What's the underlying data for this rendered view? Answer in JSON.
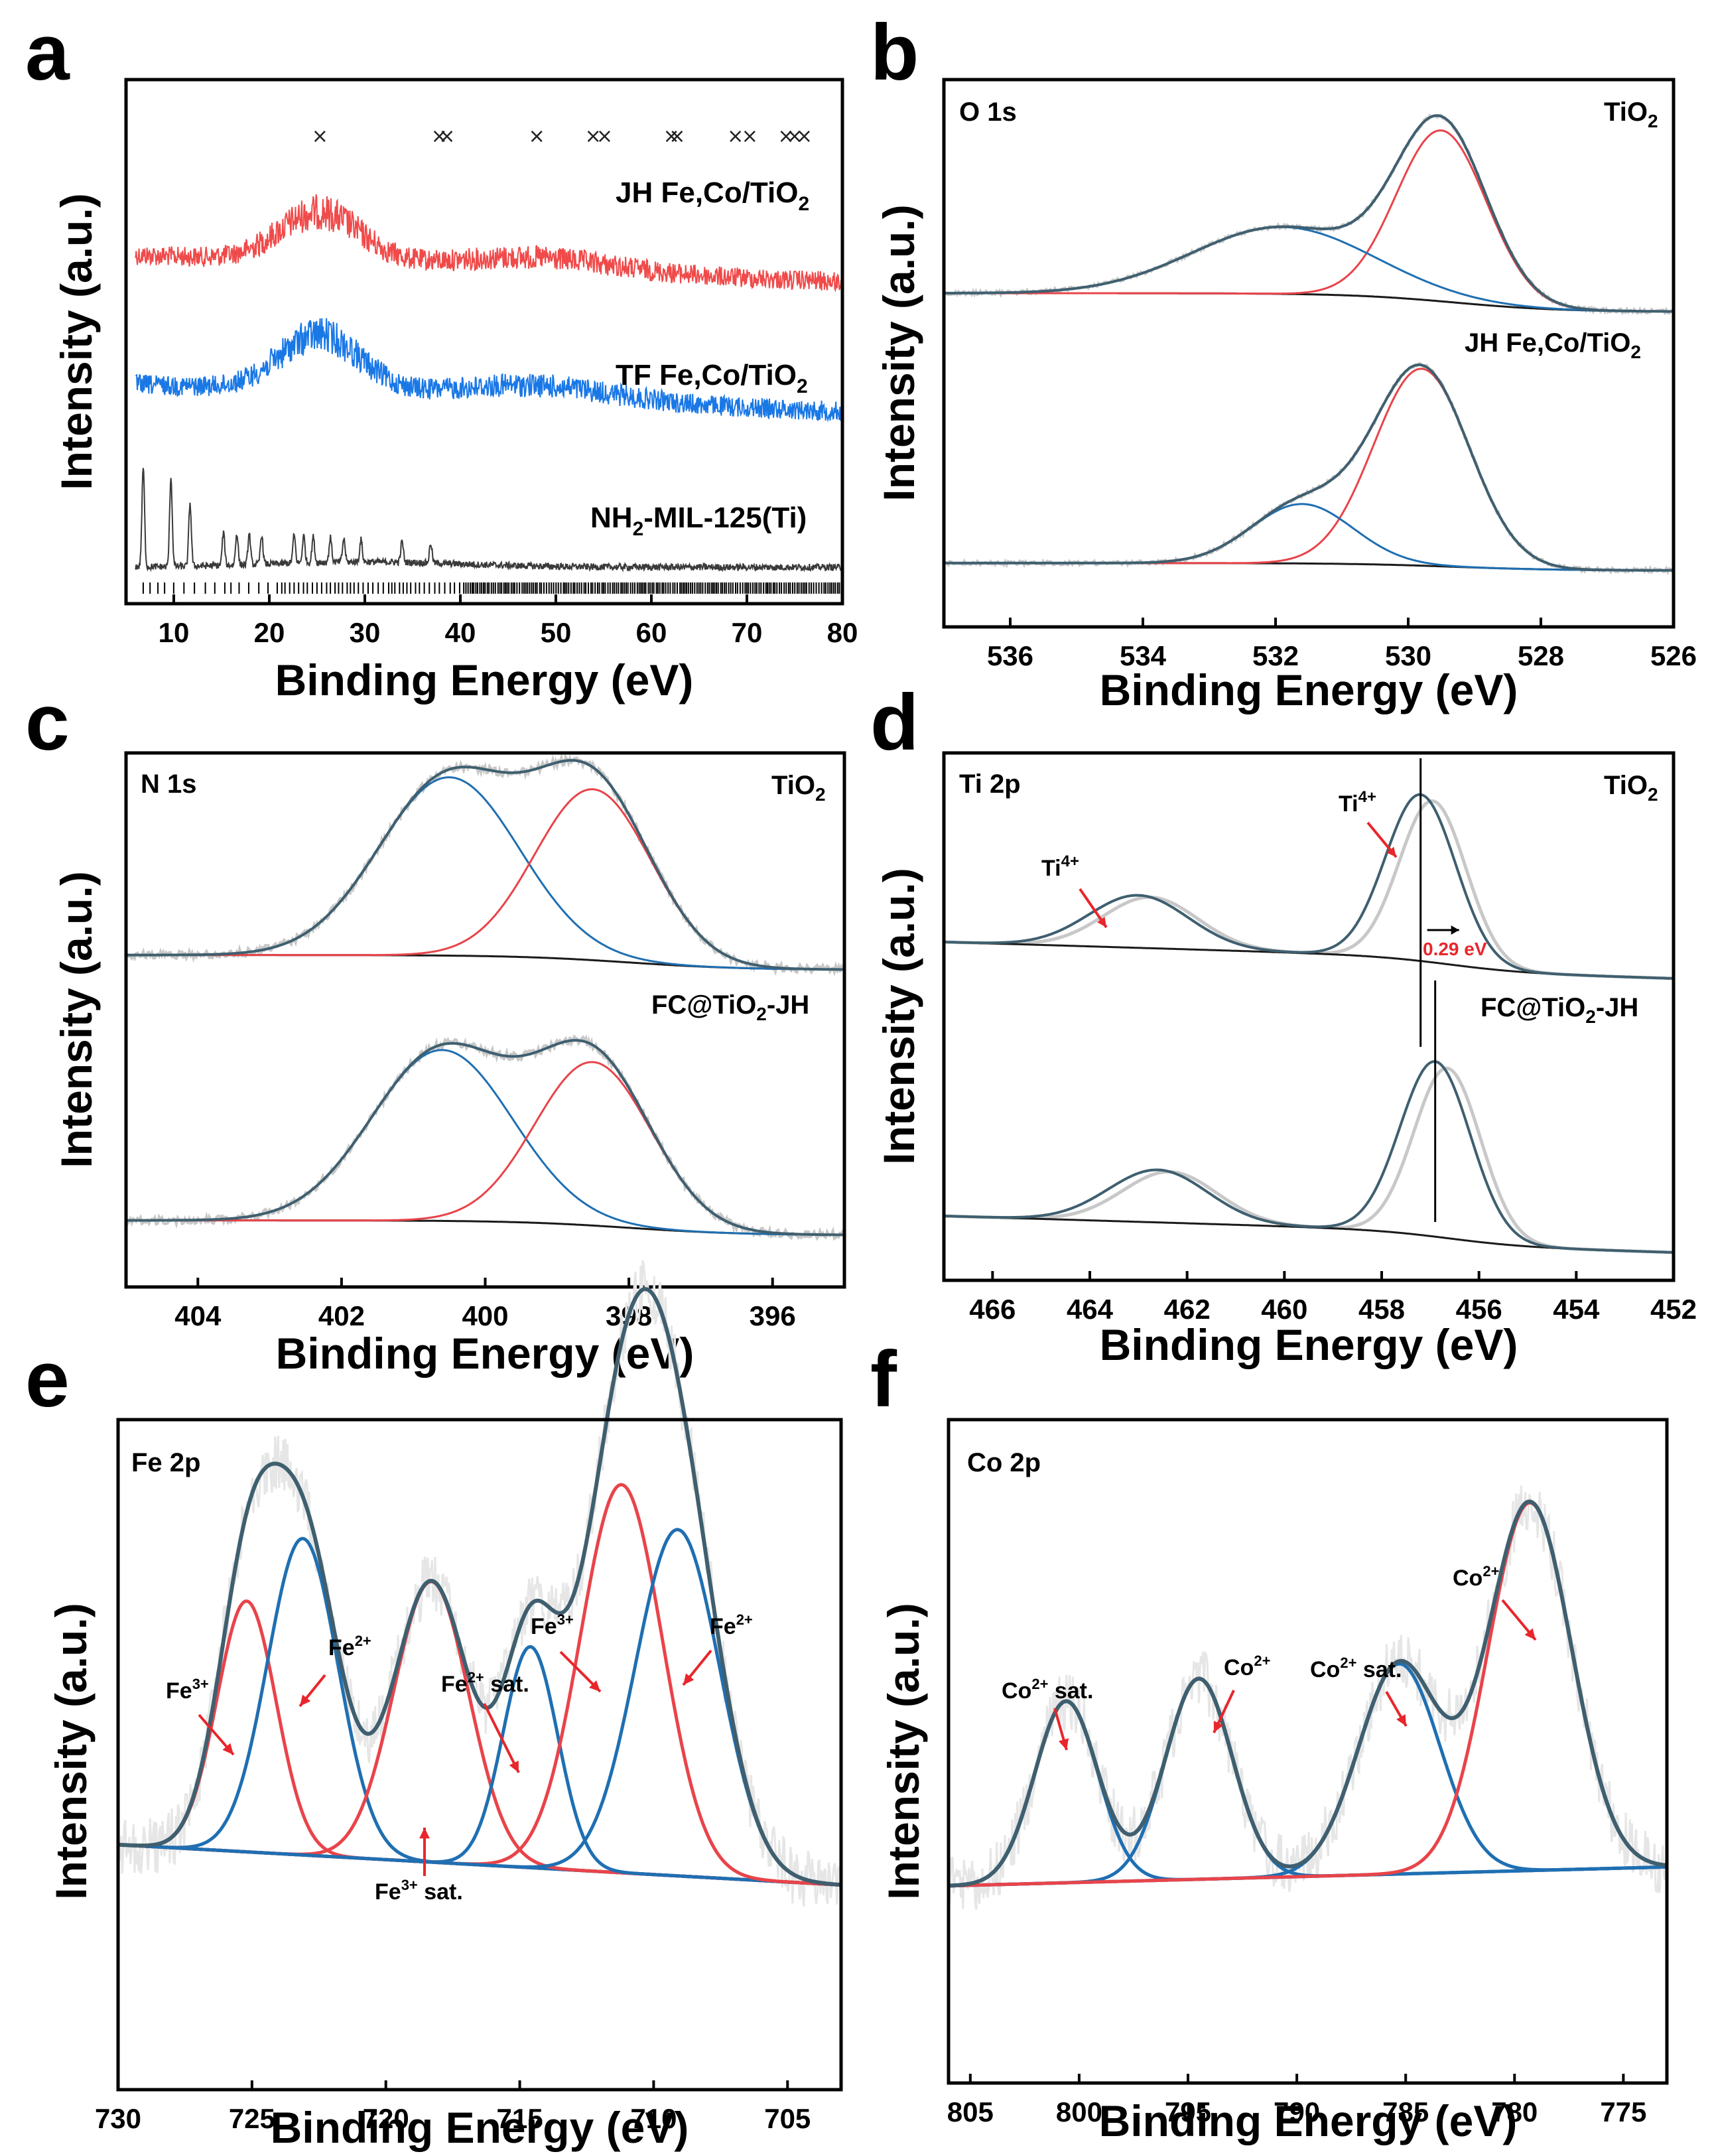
{
  "figure": {
    "colors": {
      "raw": "#c8c8c8",
      "envelope": "#3f5f6f",
      "red_component": "#e8444a",
      "blue_component": "#1f6fb2",
      "baseline": "#1a1a1a",
      "arrow": "#e8262b",
      "xrd_red": "#f04a4a",
      "xrd_blue": "#1a78e6",
      "xrd_black": "#3a3a3a"
    },
    "panels": [
      {
        "letter": "a",
        "chart_data": {
          "type": "line",
          "title": "",
          "xlabel": "Binding Energy (eV)",
          "ylabel": "Intensity (a.u.)",
          "xlim": [
            5,
            80
          ],
          "xticks": [
            "10",
            "20",
            "30",
            "40",
            "50",
            "60",
            "70",
            "80"
          ],
          "series": [
            {
              "name": "JH Fe,Co/TiO2",
              "label_main": "JH Fe,Co/TiO",
              "label_sub": "2",
              "color": "#f04a4a",
              "broad_peak_x": 25.3
            },
            {
              "name": "TF Fe,Co/TiO2",
              "label_main": "TF Fe,Co/TiO",
              "label_sub": "2",
              "color": "#1a78e6",
              "broad_peak_x": 25.3
            },
            {
              "name": "NH2-MIL-125(Ti)",
              "label_pre": "NH",
              "label_sub": "2",
              "label_post": "-MIL-125(Ti)",
              "color": "#3a3a3a",
              "peaks_x": [
                6.8,
                9.7,
                11.7,
                15.2,
                16.6,
                17.9,
                19.2,
                22.6,
                23.6,
                24.6,
                26.4,
                27.8,
                29.6,
                33.9,
                36.9
              ]
            },
            {
              "name": "reference ticks",
              "marker": "|",
              "tick_start": 6.8
            }
          ],
          "top_markers_x": [
            25.3,
            37.8,
            38.6,
            48.0,
            53.9,
            55.1,
            62.1,
            62.7,
            68.8,
            70.3,
            74.1,
            75.0,
            76.0
          ]
        }
      },
      {
        "letter": "b",
        "chart_data": {
          "type": "line",
          "title": "O 1s",
          "xlabel": "Binding Energy (eV)",
          "ylabel": "Intensity (a.u.)",
          "xlim": [
            537,
            526
          ],
          "xticks": [
            "536",
            "534",
            "532",
            "530",
            "528",
            "526"
          ],
          "spectra": [
            {
              "name": "TiO2",
              "label_main": "TiO",
              "label_sub": "2",
              "peaks": [
                {
                  "center": 529.5,
                  "height": 0.46,
                  "fwhm": 1.6,
                  "color": "red"
                },
                {
                  "center": 531.9,
                  "height": 0.18,
                  "fwhm": 3.2,
                  "color": "blue"
                }
              ]
            },
            {
              "name": "JH Fe,Co/TiO2",
              "label_main": "JH Fe,Co/TiO",
              "label_sub": "2",
              "peaks": [
                {
                  "center": 529.8,
                  "height": 0.53,
                  "fwhm": 1.7,
                  "color": "red"
                },
                {
                  "center": 531.6,
                  "height": 0.16,
                  "fwhm": 1.8,
                  "color": "blue"
                }
              ]
            }
          ]
        }
      },
      {
        "letter": "c",
        "chart_data": {
          "type": "line",
          "title": "N 1s",
          "xlabel": "Binding Energy (eV)",
          "ylabel": "Intensity (a.u.)",
          "xlim": [
            405,
            395
          ],
          "xticks": [
            "404",
            "402",
            "400",
            "398",
            "396"
          ],
          "spectra": [
            {
              "name": "TiO2",
              "label_main": "TiO",
              "label_sub": "2",
              "peaks": [
                {
                  "center": 400.5,
                  "height": 0.48,
                  "fwhm": 2.3,
                  "color": "blue"
                },
                {
                  "center": 398.5,
                  "height": 0.46,
                  "fwhm": 1.9,
                  "color": "red"
                }
              ]
            },
            {
              "name": "FC@TiO2-JH",
              "label_main": "FC@TiO",
              "label_sub": "2",
              "label_post": "-JH",
              "peaks": [
                {
                  "center": 400.6,
                  "height": 0.46,
                  "fwhm": 2.3,
                  "color": "blue"
                },
                {
                  "center": 398.5,
                  "height": 0.44,
                  "fwhm": 1.9,
                  "color": "red"
                }
              ]
            }
          ]
        }
      },
      {
        "letter": "d",
        "chart_data": {
          "type": "line",
          "title": "Ti 2p",
          "xlabel": "Binding Energy (eV)",
          "ylabel": "Intensity (a.u.)",
          "xlim": [
            467,
            452
          ],
          "xticks": [
            "466",
            "464",
            "462",
            "460",
            "458",
            "456",
            "454",
            "452"
          ],
          "spectra": [
            {
              "name": "TiO2",
              "label_main": "TiO",
              "label_sub": "2",
              "peaks": [
                {
                  "center": 457.2,
                  "height": 0.57,
                  "fwhm": 1.7
                },
                {
                  "center": 463.0,
                  "height": 0.18,
                  "fwhm": 2.4
                }
              ]
            },
            {
              "name": "FC@TiO2-JH",
              "label_main": "FC@TiO",
              "label_sub": "2",
              "label_post": "-JH",
              "peaks": [
                {
                  "center": 456.9,
                  "height": 0.6,
                  "fwhm": 1.7
                },
                {
                  "center": 462.6,
                  "height": 0.18,
                  "fwhm": 2.4
                }
              ]
            }
          ],
          "annotations": [
            {
              "text_main": "Ti",
              "text_sup": "4+",
              "x": 464.6,
              "target": 463.2
            },
            {
              "text_main": "Ti",
              "text_sup": "4+",
              "x": 458.9,
              "target": 457.7
            }
          ],
          "reference_lines_x": [
            457.2,
            456.9
          ],
          "shift_label": "0.29 eV"
        }
      },
      {
        "letter": "e",
        "chart_data": {
          "type": "line",
          "title": "Fe 2p",
          "xlabel": "Binding Energy (eV)",
          "ylabel": "Intensity (a.u.)",
          "xlim": [
            730,
            703
          ],
          "xticks": [
            "730",
            "725",
            "720",
            "715",
            "710",
            "705"
          ],
          "peaks": [
            {
              "center": 725.2,
              "height": 0.42,
              "fwhm": 2.6,
              "color": "red",
              "label": "Fe3+"
            },
            {
              "center": 723.1,
              "height": 0.53,
              "fwhm": 3.1,
              "color": "blue",
              "label": "Fe2+"
            },
            {
              "center": 718.3,
              "height": 0.47,
              "fwhm": 3.3,
              "color": "red",
              "label": "Fe3+ sat."
            },
            {
              "center": 714.6,
              "height": 0.37,
              "fwhm": 2.4,
              "color": "blue",
              "label": "Fe2+ sat."
            },
            {
              "center": 711.2,
              "height": 0.65,
              "fwhm": 3.6,
              "color": "red",
              "label": "Fe3+"
            },
            {
              "center": 709.1,
              "height": 0.58,
              "fwhm": 3.7,
              "color": "blue",
              "label": "Fe2+"
            }
          ],
          "annotations": [
            {
              "text_main": "Fe",
              "text_sup": "3+",
              "x": 727.2
            },
            {
              "text_main": "Fe",
              "text_sup": "2+",
              "x": 721.5
            },
            {
              "text_main": "Fe",
              "text_sup": "2+",
              "text_post": " sat.",
              "x": 716.8
            },
            {
              "text_main": "Fe",
              "text_sup": "3+",
              "text_post": " sat.",
              "x": 718.2
            },
            {
              "text_main": "Fe",
              "text_sup": "3+",
              "x": 713.3
            },
            {
              "text_main": "Fe",
              "text_sup": "2+",
              "x": 707.3
            }
          ]
        }
      },
      {
        "letter": "f",
        "chart_data": {
          "type": "line",
          "title": "Co 2p",
          "xlabel": "Binding Energy (eV)",
          "ylabel": "Intensity (a.u.)",
          "xlim": [
            806,
            773
          ],
          "xticks": [
            "805",
            "800",
            "795",
            "790",
            "785",
            "780",
            "775"
          ],
          "peaks": [
            {
              "center": 800.6,
              "height": 0.38,
              "fwhm": 3.4,
              "color": "blue",
              "label": "Co2+ sat."
            },
            {
              "center": 794.5,
              "height": 0.42,
              "fwhm": 3.6,
              "color": "blue",
              "label": "Co2+"
            },
            {
              "center": 785.3,
              "height": 0.44,
              "fwhm": 4.4,
              "color": "blue",
              "label": "Co2+ sat."
            },
            {
              "center": 779.3,
              "height": 0.77,
              "fwhm": 4.5,
              "color": "red",
              "label": "Co2+"
            }
          ],
          "annotations": [
            {
              "text_main": "Co",
              "text_sup": "2+",
              "text_post": " sat.",
              "x": 801.4
            },
            {
              "text_main": "Co",
              "text_sup": "2+",
              "x": 793.5
            },
            {
              "text_main": "Co",
              "text_sup": "2+",
              "text_post": " sat.",
              "x": 785.7
            },
            {
              "text_main": "Co",
              "text_sup": "2+",
              "x": 780.8
            }
          ]
        }
      }
    ]
  }
}
